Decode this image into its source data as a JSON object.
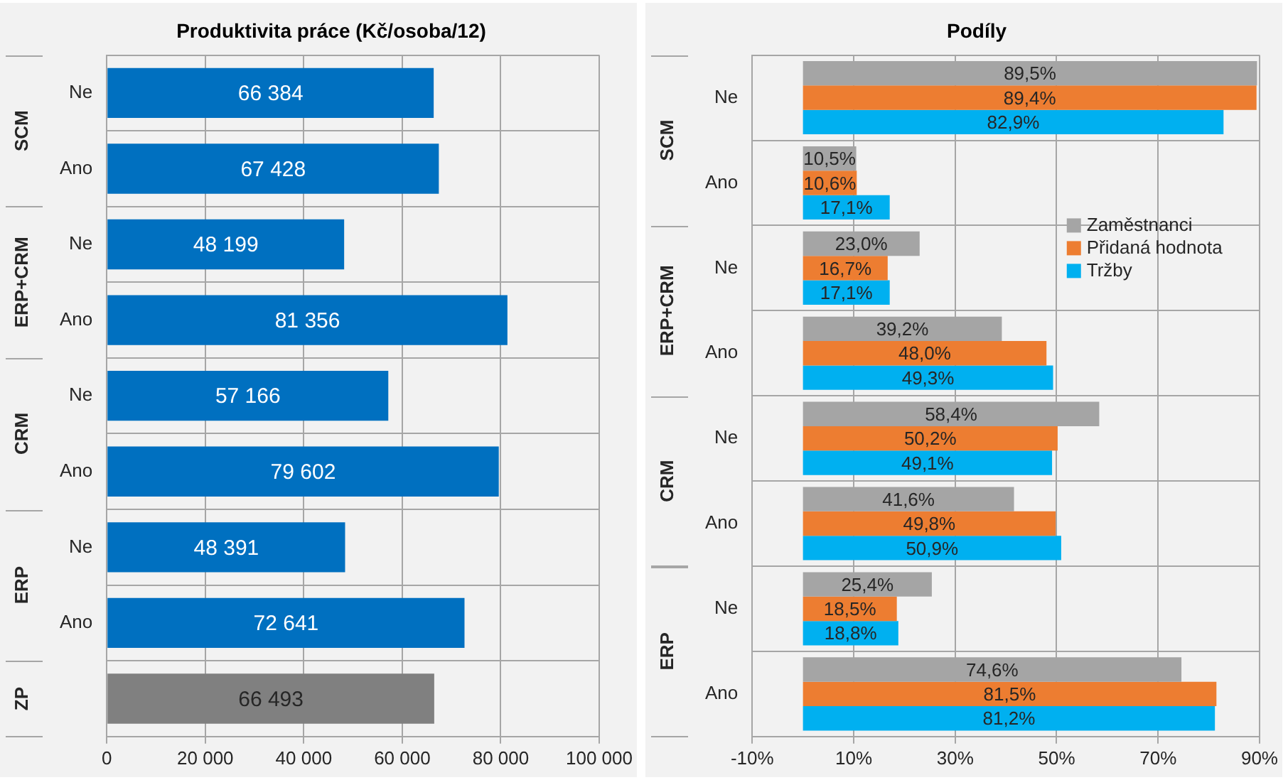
{
  "chart_data": [
    {
      "type": "bar",
      "title": "Produktivita práce (Kč/osoba/12)",
      "orientation": "horizontal",
      "categories": [
        "Ne",
        "Ano",
        "Ne",
        "Ano",
        "Ne",
        "Ano",
        "Ne",
        "Ano",
        null
      ],
      "annotations": [
        "SCM",
        "ERP+CRM",
        "CRM",
        "ERP",
        "ZP"
      ],
      "values": [
        66384,
        67428,
        48199,
        81356,
        57166,
        79602,
        48391,
        72641,
        66493
      ],
      "colors": [
        "#0070c0",
        "#0070c0",
        "#0070c0",
        "#0070c0",
        "#0070c0",
        "#0070c0",
        "#0070c0",
        "#0070c0",
        "#808080"
      ],
      "value_labels": [
        "66 384",
        "67 428",
        "48 199",
        "81 356",
        "57 166",
        "79 602",
        "48 391",
        "72 641",
        "66 493"
      ],
      "xlim": [
        0,
        100000
      ],
      "xticks": [
        0,
        {
          "value": 20000,
          "label": "20 000"
        },
        {
          "value": 40000,
          "label": "40 000"
        },
        {
          "value": 60000,
          "label": "60 000"
        },
        {
          "value": 80000,
          "label": "80 000"
        },
        {
          "value": 100000,
          "label": "100 000"
        }
      ],
      "grid": true
    },
    {
      "type": "bar",
      "title": "Podíly",
      "orientation": "horizontal",
      "categories": [
        "Ne",
        "Ano",
        "Ne",
        "Ano",
        "Ne",
        "Ano",
        "Ne",
        "Ano"
      ],
      "annotations": [
        "SCM",
        "ERP+CRM",
        "CRM",
        "ERP"
      ],
      "series": [
        {
          "name": "Zaměstnanci",
          "color": "#a5a5a5",
          "values": [
            89.5,
            10.5,
            23.0,
            39.2,
            58.4,
            41.6,
            25.4,
            74.6
          ],
          "value_labels": [
            "89,5%",
            "10,5%",
            "23,0%",
            "39,2%",
            "58,4%",
            "41,6%",
            "25,4%",
            "74,6%"
          ]
        },
        {
          "name": "Přidaná hodnota",
          "color": "#ed7d31",
          "values": [
            89.4,
            10.6,
            16.7,
            48.0,
            50.2,
            49.8,
            18.5,
            81.5
          ],
          "value_labels": [
            "89,4%",
            "10,6%",
            "16,7%",
            "48,0%",
            "50,2%",
            "49,8%",
            "18,5%",
            "81,5%"
          ]
        },
        {
          "name": "Tržby",
          "color": "#00b0f0",
          "values": [
            82.9,
            17.1,
            17.1,
            49.3,
            49.1,
            50.9,
            18.8,
            81.2
          ],
          "value_labels": [
            "82,9%",
            "17,1%",
            "17,1%",
            "49,3%",
            "49,1%",
            "50,9%",
            "18,8%",
            "81,2%"
          ]
        }
      ],
      "xlim": [
        -10,
        90
      ],
      "xticks": [
        {
          "value": -10,
          "label": "-10%"
        },
        {
          "value": 10,
          "label": "10%"
        },
        {
          "value": 30,
          "label": "30%"
        },
        {
          "value": 50,
          "label": "50%"
        },
        {
          "value": 70,
          "label": "70%"
        },
        {
          "value": 90,
          "label": "90%"
        }
      ],
      "grid": true,
      "legend": "right"
    }
  ]
}
